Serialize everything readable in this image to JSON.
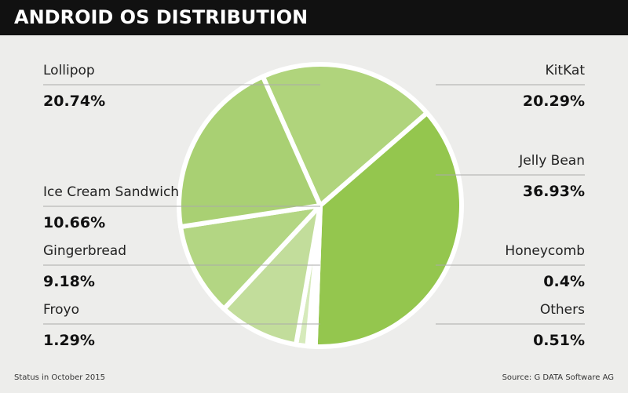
{
  "chart_data": {
    "type": "pie",
    "title": "ANDROID OS DISTRIBUTION",
    "categories": [
      "KitKat",
      "Jelly Bean",
      "Others",
      "Honeycomb",
      "Froyo",
      "Gingerbread",
      "Ice Cream Sandwich",
      "Lollipop"
    ],
    "values": [
      20.29,
      36.93,
      0.51,
      0.4,
      1.29,
      9.18,
      10.66,
      20.74
    ],
    "value_labels": [
      "20.29%",
      "36.93%",
      "0.51%",
      "0.4%",
      "1.29%",
      "9.18%",
      "10.66%",
      "20.74%"
    ],
    "colors": [
      "#b0d47c",
      "#94c64e",
      "#c6e0a0",
      "#c9e2a6",
      "#d6eabb",
      "#c2dd9b",
      "#b3d683",
      "#a9d073"
    ],
    "footnote": "Status in October 2015",
    "source": "Source: G DATA Software AG"
  }
}
